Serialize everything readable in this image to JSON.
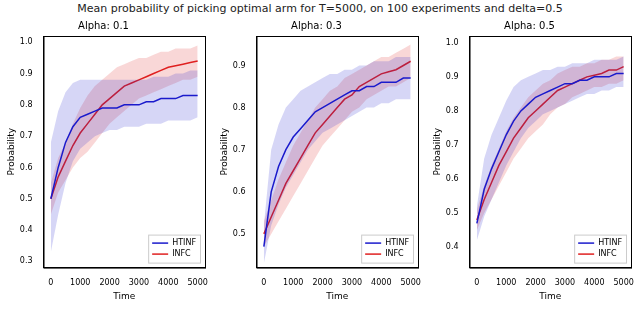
{
  "title": "Mean probability of picking optimal arm for T=5000, on 100 experiments and delta=0.5",
  "chart_data": [
    {
      "type": "line",
      "title": "Alpha: 0.1",
      "x_label": "Time",
      "y_label": "Probability",
      "x": [
        0,
        250,
        500,
        750,
        1000,
        1250,
        1500,
        1750,
        2000,
        2250,
        2500,
        2750,
        3000,
        3250,
        3500,
        3750,
        4000,
        4250,
        4500,
        4750,
        5000
      ],
      "xlim": [
        -250,
        5250
      ],
      "xticks": [
        0,
        1000,
        2000,
        3000,
        4000,
        5000
      ],
      "ylim": [
        0.28,
        1.02
      ],
      "yticks": [
        0.3,
        0.4,
        0.5,
        0.6,
        0.7,
        0.8,
        0.9,
        {
          "value": 1,
          "label": "1.0"
        }
      ],
      "grid": false,
      "legend": "lower right",
      "series": [
        {
          "name": "HTINF",
          "color": "#1a1acc",
          "values": [
            0.5,
            0.6,
            0.68,
            0.73,
            0.76,
            0.77,
            0.78,
            0.79,
            0.79,
            0.79,
            0.8,
            0.8,
            0.8,
            0.81,
            0.81,
            0.82,
            0.82,
            0.82,
            0.83,
            0.83,
            0.83
          ],
          "lower": [
            0.33,
            0.45,
            0.55,
            0.62,
            0.66,
            0.68,
            0.7,
            0.71,
            0.72,
            0.72,
            0.73,
            0.73,
            0.73,
            0.74,
            0.74,
            0.74,
            0.75,
            0.75,
            0.75,
            0.75,
            0.76
          ],
          "upper": [
            0.68,
            0.78,
            0.84,
            0.87,
            0.88,
            0.88,
            0.88,
            0.88,
            0.88,
            0.88,
            0.88,
            0.88,
            0.88,
            0.88,
            0.89,
            0.89,
            0.89,
            0.9,
            0.9,
            0.91,
            0.91
          ]
        },
        {
          "name": "INFC",
          "color": "#e02020",
          "values": [
            0.5,
            0.57,
            0.62,
            0.67,
            0.71,
            0.74,
            0.77,
            0.8,
            0.82,
            0.84,
            0.86,
            0.87,
            0.88,
            0.89,
            0.9,
            0.91,
            0.92,
            0.925,
            0.93,
            0.935,
            0.94
          ],
          "lower": [
            0.45,
            0.52,
            0.56,
            0.6,
            0.63,
            0.65,
            0.68,
            0.71,
            0.74,
            0.76,
            0.78,
            0.8,
            0.82,
            0.83,
            0.84,
            0.85,
            0.86,
            0.87,
            0.88,
            0.88,
            0.89
          ],
          "upper": [
            0.55,
            0.63,
            0.68,
            0.74,
            0.79,
            0.83,
            0.86,
            0.88,
            0.9,
            0.92,
            0.93,
            0.94,
            0.95,
            0.95,
            0.96,
            0.97,
            0.97,
            0.98,
            0.98,
            0.98,
            0.99
          ]
        }
      ]
    },
    {
      "type": "line",
      "title": "Alpha: 0.3",
      "x_label": "Time",
      "y_label": "Probability",
      "x": [
        0,
        250,
        500,
        750,
        1000,
        1250,
        1500,
        1750,
        2000,
        2250,
        2500,
        2750,
        3000,
        3250,
        3500,
        3750,
        4000,
        4250,
        4500,
        4750,
        5000
      ],
      "xlim": [
        -250,
        5250
      ],
      "xticks": [
        0,
        1000,
        2000,
        3000,
        4000,
        5000
      ],
      "ylim": [
        0.42,
        0.97
      ],
      "yticks": [
        0.5,
        0.6,
        0.7,
        0.8,
        0.9
      ],
      "grid": false,
      "legend": "lower right",
      "series": [
        {
          "name": "HTINF",
          "color": "#1a1acc",
          "values": [
            0.47,
            0.6,
            0.66,
            0.7,
            0.73,
            0.75,
            0.77,
            0.79,
            0.8,
            0.81,
            0.82,
            0.83,
            0.84,
            0.84,
            0.85,
            0.85,
            0.86,
            0.86,
            0.86,
            0.87,
            0.87
          ],
          "lower": [
            0.43,
            0.52,
            0.57,
            0.61,
            0.64,
            0.67,
            0.7,
            0.72,
            0.74,
            0.75,
            0.76,
            0.77,
            0.78,
            0.79,
            0.8,
            0.8,
            0.81,
            0.81,
            0.82,
            0.82,
            0.82
          ],
          "upper": [
            0.52,
            0.7,
            0.76,
            0.8,
            0.82,
            0.84,
            0.85,
            0.86,
            0.87,
            0.88,
            0.88,
            0.89,
            0.89,
            0.9,
            0.9,
            0.91,
            0.91,
            0.91,
            0.92,
            0.92,
            0.92
          ]
        },
        {
          "name": "INFC",
          "color": "#e02020",
          "values": [
            0.5,
            0.54,
            0.58,
            0.62,
            0.65,
            0.68,
            0.71,
            0.74,
            0.76,
            0.78,
            0.8,
            0.82,
            0.83,
            0.85,
            0.86,
            0.87,
            0.88,
            0.885,
            0.89,
            0.9,
            0.91
          ],
          "lower": [
            0.47,
            0.5,
            0.53,
            0.56,
            0.59,
            0.62,
            0.65,
            0.68,
            0.71,
            0.73,
            0.75,
            0.77,
            0.79,
            0.8,
            0.82,
            0.83,
            0.84,
            0.85,
            0.85,
            0.86,
            0.87
          ],
          "upper": [
            0.53,
            0.58,
            0.63,
            0.67,
            0.71,
            0.74,
            0.77,
            0.8,
            0.82,
            0.84,
            0.85,
            0.87,
            0.88,
            0.89,
            0.9,
            0.91,
            0.92,
            0.92,
            0.93,
            0.94,
            0.95
          ]
        }
      ]
    },
    {
      "type": "line",
      "title": "Alpha: 0.5",
      "x_label": "Time",
      "y_label": "Probability",
      "x": [
        0,
        250,
        500,
        750,
        1000,
        1250,
        1500,
        1750,
        2000,
        2250,
        2500,
        2750,
        3000,
        3250,
        3500,
        3750,
        4000,
        4250,
        4500,
        4750,
        5000
      ],
      "xlim": [
        -250,
        5250
      ],
      "xticks": [
        0,
        1000,
        2000,
        3000,
        4000,
        5000
      ],
      "ylim": [
        0.34,
        1.02
      ],
      "yticks": [
        0.4,
        0.5,
        0.6,
        0.7,
        0.8,
        0.9,
        {
          "value": 1,
          "label": "1.0"
        }
      ],
      "grid": false,
      "legend": "lower right",
      "series": [
        {
          "name": "HTINF",
          "color": "#1a1acc",
          "values": [
            0.47,
            0.57,
            0.63,
            0.68,
            0.73,
            0.77,
            0.8,
            0.82,
            0.84,
            0.85,
            0.86,
            0.87,
            0.88,
            0.88,
            0.89,
            0.89,
            0.9,
            0.9,
            0.9,
            0.91,
            0.91
          ],
          "lower": [
            0.42,
            0.49,
            0.54,
            0.59,
            0.64,
            0.68,
            0.72,
            0.75,
            0.77,
            0.79,
            0.8,
            0.81,
            0.82,
            0.83,
            0.84,
            0.85,
            0.85,
            0.86,
            0.86,
            0.87,
            0.87
          ],
          "upper": [
            0.52,
            0.66,
            0.73,
            0.78,
            0.83,
            0.87,
            0.89,
            0.9,
            0.91,
            0.92,
            0.92,
            0.93,
            0.93,
            0.94,
            0.94,
            0.94,
            0.95,
            0.95,
            0.95,
            0.95,
            0.96
          ]
        },
        {
          "name": "INFC",
          "color": "#e02020",
          "values": [
            0.48,
            0.54,
            0.59,
            0.64,
            0.68,
            0.72,
            0.75,
            0.78,
            0.8,
            0.82,
            0.84,
            0.86,
            0.87,
            0.88,
            0.89,
            0.9,
            0.905,
            0.91,
            0.92,
            0.92,
            0.93
          ],
          "lower": [
            0.45,
            0.5,
            0.54,
            0.58,
            0.62,
            0.66,
            0.69,
            0.72,
            0.74,
            0.76,
            0.79,
            0.81,
            0.82,
            0.84,
            0.85,
            0.86,
            0.87,
            0.87,
            0.88,
            0.88,
            0.89
          ],
          "upper": [
            0.51,
            0.58,
            0.64,
            0.69,
            0.74,
            0.78,
            0.81,
            0.84,
            0.86,
            0.88,
            0.89,
            0.91,
            0.92,
            0.93,
            0.93,
            0.94,
            0.94,
            0.95,
            0.95,
            0.96,
            0.96
          ]
        }
      ]
    }
  ]
}
